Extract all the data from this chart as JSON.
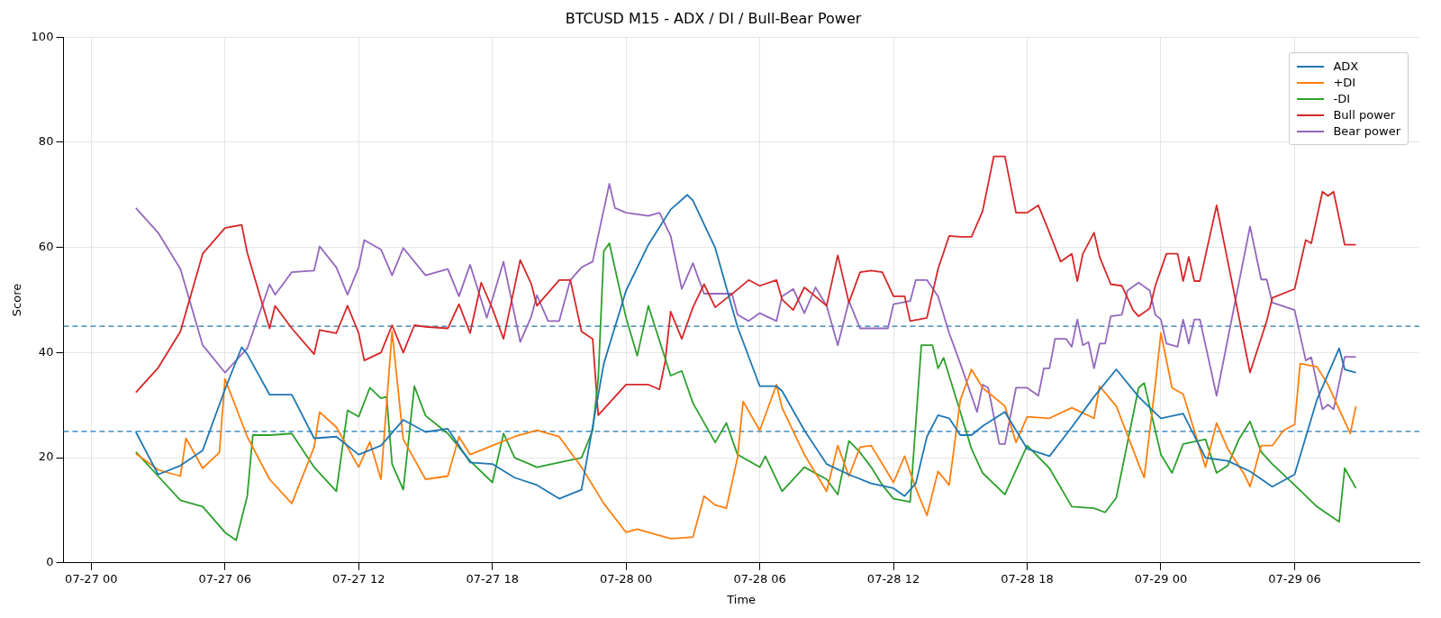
{
  "chart_data": {
    "type": "line",
    "title": "BTCUSD M15 - ADX / DI / Bull-Bear Power",
    "xlabel": "Time",
    "ylabel": "Score",
    "xlim": [
      "--07-26T22:45",
      "--07-29T11:36"
    ],
    "xticks": [
      {
        "value": "--07-27T00:00",
        "label": "07-27 00"
      },
      {
        "value": "--07-27T06:00",
        "label": "07-27 06"
      },
      {
        "value": "--07-27T12:00",
        "label": "07-27 12"
      },
      {
        "value": "--07-27T18:00",
        "label": "07-27 18"
      },
      {
        "value": "--07-28T00:00",
        "label": "07-28 00"
      },
      {
        "value": "--07-28T06:00",
        "label": "07-28 06"
      },
      {
        "value": "--07-28T12:00",
        "label": "07-28 12"
      },
      {
        "value": "--07-28T18:00",
        "label": "07-28 18"
      },
      {
        "value": "--07-29T00:00",
        "label": "07-29 00"
      },
      {
        "value": "--07-29T06:00",
        "label": "07-29 06"
      }
    ],
    "ylim": [
      0,
      100
    ],
    "yticks": [
      0,
      20,
      40,
      60,
      80,
      100
    ],
    "grid": true,
    "legend": "top right",
    "ref_lines": [
      {
        "axis": "y",
        "value": 45,
        "color": "#1f77b4",
        "line_style": "dashed"
      },
      {
        "axis": "y",
        "value": 25,
        "color": "#1f77b4",
        "line_style": "dashed"
      }
    ],
    "series": [
      {
        "name": "ADX",
        "color": "#1f77b4",
        "x": [
          "--07-27T02:00",
          "--07-27T03:00",
          "--07-27T04:00",
          "--07-27T05:00",
          "--07-27T06:00",
          "--07-27T06:45",
          "--07-27T07:00",
          "--07-27T08:00",
          "--07-27T09:00",
          "--07-27T10:00",
          "--07-27T11:00",
          "--07-27T12:00",
          "--07-27T13:00",
          "--07-27T14:00",
          "--07-27T15:00",
          "--07-27T16:00",
          "--07-27T17:00",
          "--07-27T18:00",
          "--07-27T19:00",
          "--07-27T20:00",
          "--07-27T21:00",
          "--07-27T22:00",
          "--07-27T23:00",
          "--07-28T00:00",
          "--07-28T01:00",
          "--07-28T02:00",
          "--07-28T02:45",
          "--07-28T03:00",
          "--07-28T04:00",
          "--07-28T05:00",
          "--07-28T06:00",
          "--07-28T06:45",
          "--07-28T07:00",
          "--07-28T08:00",
          "--07-28T09:00",
          "--07-28T10:00",
          "--07-28T11:00",
          "--07-28T12:00",
          "--07-28T12:30",
          "--07-28T13:00",
          "--07-28T13:30",
          "--07-28T14:00",
          "--07-28T14:30",
          "--07-28T15:00",
          "--07-28T15:30",
          "--07-28T16:00",
          "--07-28T17:00",
          "--07-28T18:00",
          "--07-28T19:00",
          "--07-28T20:00",
          "--07-28T21:00",
          "--07-28T22:00",
          "--07-28T23:00",
          "--07-29T00:00",
          "--07-29T01:00",
          "--07-29T02:00",
          "--07-29T03:00",
          "--07-29T04:00",
          "--07-29T05:00",
          "--07-29T06:00",
          "--07-29T07:00",
          "--07-29T08:00",
          "--07-29T08:15",
          "--07-29T08:45"
        ],
        "values": [
          24.9,
          16.8,
          18.5,
          21.4,
          33,
          41,
          39.7,
          32,
          32,
          23.7,
          24,
          20.6,
          22.3,
          27.2,
          24.9,
          25.5,
          19.1,
          18.8,
          16.2,
          14.8,
          12.2,
          13.9,
          37.9,
          51.8,
          60.5,
          67.2,
          70,
          68.9,
          59.9,
          44.9,
          33.6,
          33.6,
          32.7,
          25.2,
          18.8,
          16.8,
          15.1,
          14.2,
          12.7,
          15.1,
          24,
          28.1,
          27.5,
          24.3,
          24.3,
          26,
          28.7,
          21.7,
          20.3,
          25.8,
          31.6,
          36.8,
          31.6,
          27.5,
          28.4,
          20,
          19.4,
          17.4,
          14.5,
          16.8,
          31,
          40.8,
          36.8,
          36.2
        ]
      },
      {
        "name": "+DI",
        "color": "#ff7f0e",
        "x": [
          "--07-27T02:00",
          "--07-27T03:00",
          "--07-27T04:00",
          "--07-27T04:15",
          "--07-27T05:00",
          "--07-27T05:45",
          "--07-27T06:00",
          "--07-27T07:00",
          "--07-27T08:00",
          "--07-27T09:00",
          "--07-27T10:00",
          "--07-27T10:15",
          "--07-27T11:00",
          "--07-27T12:00",
          "--07-27T12:30",
          "--07-27T13:00",
          "--07-27T13:30",
          "--07-27T14:00",
          "--07-27T15:00",
          "--07-27T16:00",
          "--07-27T16:30",
          "--07-27T17:00",
          "--07-27T18:00",
          "--07-27T19:00",
          "--07-27T20:00",
          "--07-27T21:00",
          "--07-27T22:00",
          "--07-27T23:00",
          "--07-28T00:00",
          "--07-28T00:30",
          "--07-28T01:00",
          "--07-28T02:00",
          "--07-28T03:00",
          "--07-28T03:30",
          "--07-28T04:00",
          "--07-28T04:30",
          "--07-28T05:00",
          "--07-28T05:15",
          "--07-28T06:00",
          "--07-28T06:45",
          "--07-28T07:00",
          "--07-28T08:00",
          "--07-28T09:00",
          "--07-28T09:30",
          "--07-28T10:00",
          "--07-28T10:30",
          "--07-28T11:00",
          "--07-28T11:30",
          "--07-28T12:00",
          "--07-28T12:30",
          "--07-28T13:00",
          "--07-28T13:30",
          "--07-28T14:00",
          "--07-28T14:30",
          "--07-28T15:00",
          "--07-28T15:30",
          "--07-28T16:00",
          "--07-28T17:00",
          "--07-28T17:30",
          "--07-28T18:00",
          "--07-28T19:00",
          "--07-28T20:00",
          "--07-28T21:00",
          "--07-28T21:15",
          "--07-28T22:00",
          "--07-28T23:00",
          "--07-28T23:15",
          "--07-28T23:45",
          "--07-29T00:00",
          "--07-29T00:30",
          "--07-29T01:00",
          "--07-29T02:00",
          "--07-29T02:30",
          "--07-29T03:00",
          "--07-29T03:45",
          "--07-29T04:00",
          "--07-29T04:30",
          "--07-29T05:00",
          "--07-29T05:30",
          "--07-29T06:00",
          "--07-29T06:15",
          "--07-29T07:00",
          "--07-29T07:30",
          "--07-29T08:00",
          "--07-29T08:30",
          "--07-29T08:45"
        ],
        "values": [
          20.8,
          17.7,
          16.5,
          23.7,
          18,
          21,
          35,
          24,
          15.9,
          11.3,
          22,
          28.7,
          25.8,
          18.2,
          23,
          15.9,
          44,
          23.5,
          15.9,
          16.5,
          24,
          20.6,
          22.3,
          24,
          25.2,
          24,
          18.2,
          11.3,
          5.8,
          6.4,
          5.8,
          4.6,
          4.9,
          12.7,
          11,
          10.4,
          20,
          30.7,
          25.2,
          33.9,
          29.5,
          20.6,
          13.6,
          22.3,
          16.5,
          22,
          22.3,
          18.8,
          15.3,
          20.3,
          14.2,
          9,
          17.4,
          14.8,
          31,
          36.8,
          33.3,
          29.8,
          22.9,
          27.8,
          27.5,
          29.5,
          27.5,
          33.6,
          29.8,
          18.8,
          16.2,
          33.9,
          43.7,
          33.3,
          32.1,
          18.2,
          26.6,
          21.7,
          16.8,
          14.5,
          22.3,
          22.3,
          25.2,
          26.3,
          37.9,
          37.3,
          33.9,
          29.2,
          24.6,
          29.8
        ]
      },
      {
        "name": "-DI",
        "color": "#2ca02c",
        "x": [
          "--07-27T02:00",
          "--07-27T03:00",
          "--07-27T04:00",
          "--07-27T05:00",
          "--07-27T06:00",
          "--07-27T06:30",
          "--07-27T07:00",
          "--07-27T07:15",
          "--07-27T08:00",
          "--07-27T09:00",
          "--07-27T10:00",
          "--07-27T11:00",
          "--07-27T11:30",
          "--07-27T12:00",
          "--07-27T12:30",
          "--07-27T13:00",
          "--07-27T13:15",
          "--07-27T13:30",
          "--07-27T14:00",
          "--07-27T14:30",
          "--07-27T15:00",
          "--07-27T16:00",
          "--07-27T17:00",
          "--07-27T18:00",
          "--07-27T18:30",
          "--07-27T19:00",
          "--07-27T20:00",
          "--07-27T21:00",
          "--07-27T22:00",
          "--07-27T22:30",
          "--07-27T22:45",
          "--07-27T23:00",
          "--07-27T23:15",
          "--07-28T00:00",
          "--07-28T00:30",
          "--07-28T01:00",
          "--07-28T02:00",
          "--07-28T02:30",
          "--07-28T03:00",
          "--07-28T04:00",
          "--07-28T04:30",
          "--07-28T05:00",
          "--07-28T06:00",
          "--07-28T06:15",
          "--07-28T07:00",
          "--07-28T08:00",
          "--07-28T09:00",
          "--07-28T09:30",
          "--07-28T10:00",
          "--07-28T10:30",
          "--07-28T11:00",
          "--07-28T11:30",
          "--07-28T12:00",
          "--07-28T12:45",
          "--07-28T13:15",
          "--07-28T13:45",
          "--07-28T14:00",
          "--07-28T14:15",
          "--07-28T15:00",
          "--07-28T15:30",
          "--07-28T16:00",
          "--07-28T17:00",
          "--07-28T18:00",
          "--07-28T19:00",
          "--07-28T20:00",
          "--07-28T21:00",
          "--07-28T21:30",
          "--07-28T22:00",
          "--07-28T23:00",
          "--07-28T23:15",
          "--07-29T00:00",
          "--07-29T00:30",
          "--07-29T01:00",
          "--07-29T02:00",
          "--07-29T02:30",
          "--07-29T03:00",
          "--07-29T03:30",
          "--07-29T04:00",
          "--07-29T04:30",
          "--07-29T05:00",
          "--07-29T06:00",
          "--07-29T07:00",
          "--07-29T08:00",
          "--07-29T08:15",
          "--07-29T08:45"
        ],
        "values": [
          21.1,
          16.5,
          11.9,
          10.7,
          5.8,
          4.3,
          12.7,
          24.3,
          24.3,
          24.6,
          18.2,
          13.6,
          29,
          27.8,
          33.3,
          31.3,
          31.6,
          18.8,
          13.9,
          33.6,
          28,
          24.6,
          19.4,
          15.3,
          24.6,
          20,
          18.2,
          19.1,
          20,
          25.2,
          35,
          59.3,
          60.8,
          46.6,
          39.4,
          48.9,
          35.6,
          36.5,
          30.4,
          22.9,
          26.6,
          20.6,
          18.2,
          20.3,
          13.6,
          18.2,
          15.9,
          13,
          23.2,
          21,
          18.2,
          14.8,
          12.2,
          11.6,
          41.4,
          41.4,
          37,
          39,
          28.7,
          21.7,
          17.1,
          13,
          22.3,
          18,
          10.7,
          10.4,
          9.6,
          12.4,
          33.3,
          34.2,
          20.6,
          17.1,
          22.6,
          23.5,
          17.1,
          18.5,
          23.5,
          26.9,
          21.1,
          18.8,
          14.8,
          10.7,
          7.8,
          18,
          14.2
        ]
      },
      {
        "name": "Bull power",
        "color": "#d62728",
        "x": [
          "--07-27T02:00",
          "--07-27T03:00",
          "--07-27T04:00",
          "--07-27T05:00",
          "--07-27T06:00",
          "--07-27T06:45",
          "--07-27T07:00",
          "--07-27T08:00",
          "--07-27T08:15",
          "--07-27T09:00",
          "--07-27T10:00",
          "--07-27T10:15",
          "--07-27T11:00",
          "--07-27T11:30",
          "--07-27T12:00",
          "--07-27T12:15",
          "--07-27T13:00",
          "--07-27T13:30",
          "--07-27T14:00",
          "--07-27T14:30",
          "--07-27T15:00",
          "--07-27T16:00",
          "--07-27T16:30",
          "--07-27T17:00",
          "--07-27T17:30",
          "--07-27T18:00",
          "--07-27T18:30",
          "--07-27T19:15",
          "--07-27T19:45",
          "--07-27T20:00",
          "--07-27T21:00",
          "--07-27T21:30",
          "--07-27T22:00",
          "--07-27T22:30",
          "--07-27T22:45",
          "--07-28T00:00",
          "--07-28T01:00",
          "--07-28T01:30",
          "--07-28T01:45",
          "--07-28T02:00",
          "--07-28T02:30",
          "--07-28T03:00",
          "--07-28T03:30",
          "--07-28T04:00",
          "--07-28T05:00",
          "--07-28T05:30",
          "--07-28T06:00",
          "--07-28T06:45",
          "--07-28T07:00",
          "--07-28T07:30",
          "--07-28T08:00",
          "--07-28T09:00",
          "--07-28T09:30",
          "--07-28T10:00",
          "--07-28T10:30",
          "--07-28T11:00",
          "--07-28T11:30",
          "--07-28T12:00",
          "--07-28T12:30",
          "--07-28T12:45",
          "--07-28T13:30",
          "--07-28T14:00",
          "--07-28T14:30",
          "--07-28T15:00",
          "--07-28T15:30",
          "--07-28T16:00",
          "--07-28T16:30",
          "--07-28T17:00",
          "--07-28T17:30",
          "--07-28T18:00",
          "--07-28T18:30",
          "--07-28T19:00",
          "--07-28T19:30",
          "--07-28T20:00",
          "--07-28T20:15",
          "--07-28T20:30",
          "--07-28T21:00",
          "--07-28T21:15",
          "--07-28T21:45",
          "--07-28T22:15",
          "--07-28T22:45",
          "--07-28T23:00",
          "--07-28T23:30",
          "--07-28T23:45",
          "--07-29T00:15",
          "--07-29T00:45",
          "--07-29T01:00",
          "--07-29T01:15",
          "--07-29T01:30",
          "--07-29T01:45",
          "--07-29T02:30",
          "--07-29T04:00",
          "--07-29T04:45",
          "--07-29T05:00",
          "--07-29T06:00",
          "--07-29T06:30",
          "--07-29T06:45",
          "--07-29T07:15",
          "--07-29T07:30",
          "--07-29T07:45",
          "--07-29T08:15",
          "--07-29T08:45"
        ],
        "values": [
          32.4,
          37.1,
          44,
          58.8,
          63.7,
          64.3,
          59,
          44.6,
          48.9,
          44.6,
          39.7,
          44.3,
          43.7,
          48.9,
          43.7,
          38.5,
          40,
          45.2,
          40,
          45.2,
          44.9,
          44.6,
          49.2,
          43.7,
          53.3,
          48.4,
          42.6,
          57.6,
          53,
          48.9,
          53.8,
          53.8,
          44,
          42.6,
          28.1,
          33.9,
          33.9,
          33,
          38.2,
          47.8,
          42.6,
          48.6,
          53,
          48.6,
          52,
          53.8,
          52.7,
          53.8,
          50.1,
          48.1,
          52.4,
          48.9,
          58.5,
          49.5,
          55.3,
          55.6,
          55.3,
          50.7,
          50.7,
          46,
          46.6,
          55.9,
          62.2,
          62,
          62,
          66.9,
          77.3,
          77.3,
          66.6,
          66.6,
          68,
          62.8,
          57.3,
          58.8,
          53.6,
          58.8,
          62.8,
          58.2,
          53,
          52.7,
          48.1,
          46.9,
          48.4,
          52.7,
          58.8,
          58.8,
          53.6,
          58.2,
          53.6,
          53.6,
          68,
          36.2,
          46,
          50.4,
          52.1,
          61.4,
          60.8,
          70.6,
          69.8,
          70.6,
          60.5,
          60.5
        ]
      },
      {
        "name": "Bear power",
        "color": "#9467bd",
        "x": [
          "--07-27T02:00",
          "--07-27T03:00",
          "--07-27T04:00",
          "--07-27T05:00",
          "--07-27T06:00",
          "--07-27T07:00",
          "--07-27T08:00",
          "--07-27T08:15",
          "--07-27T09:00",
          "--07-27T10:00",
          "--07-27T10:15",
          "--07-27T11:00",
          "--07-27T11:30",
          "--07-27T12:00",
          "--07-27T12:15",
          "--07-27T13:00",
          "--07-27T13:30",
          "--07-27T14:00",
          "--07-27T15:00",
          "--07-27T16:00",
          "--07-27T16:30",
          "--07-27T17:00",
          "--07-27T17:45",
          "--07-27T18:30",
          "--07-27T19:15",
          "--07-27T19:45",
          "--07-27T20:00",
          "--07-27T20:30",
          "--07-27T21:00",
          "--07-27T21:30",
          "--07-27T22:00",
          "--07-27T22:30",
          "--07-27T23:00",
          "--07-27T23:15",
          "--07-27T23:30",
          "--07-28T00:00",
          "--07-28T01:00",
          "--07-28T01:30",
          "--07-28T02:00",
          "--07-28T02:30",
          "--07-28T03:00",
          "--07-28T03:30",
          "--07-28T04:00",
          "--07-28T04:45",
          "--07-28T05:00",
          "--07-28T05:30",
          "--07-28T06:00",
          "--07-28T06:45",
          "--07-28T07:00",
          "--07-28T07:30",
          "--07-28T08:00",
          "--07-28T08:30",
          "--07-28T09:00",
          "--07-28T09:30",
          "--07-28T10:00",
          "--07-28T10:30",
          "--07-28T11:00",
          "--07-28T11:45",
          "--07-28T12:00",
          "--07-28T12:45",
          "--07-28T13:00",
          "--07-28T13:30",
          "--07-28T14:00",
          "--07-28T14:30",
          "--07-28T15:00",
          "--07-28T15:45",
          "--07-28T16:00",
          "--07-28T16:15",
          "--07-28T16:45",
          "--07-28T17:00",
          "--07-28T17:30",
          "--07-28T18:00",
          "--07-28T18:30",
          "--07-28T18:45",
          "--07-28T19:00",
          "--07-28T19:15",
          "--07-28T19:45",
          "--07-28T20:00",
          "--07-28T20:15",
          "--07-28T20:30",
          "--07-28T20:45",
          "--07-28T21:00",
          "--07-28T21:15",
          "--07-28T21:30",
          "--07-28T21:45",
          "--07-28T22:15",
          "--07-28T22:30",
          "--07-28T23:00",
          "--07-28T23:30",
          "--07-28T23:45",
          "--07-29T00:00",
          "--07-29T00:15",
          "--07-29T00:45",
          "--07-29T01:00",
          "--07-29T01:15",
          "--07-29T01:30",
          "--07-29T01:45",
          "--07-29T02:30",
          "--07-29T04:00",
          "--07-29T04:30",
          "--07-29T04:45",
          "--07-29T05:00",
          "--07-29T06:00",
          "--07-29T06:30",
          "--07-29T06:45",
          "--07-29T07:15",
          "--07-29T07:30",
          "--07-29T07:45",
          "--07-29T08:15",
          "--07-29T08:45"
        ],
        "values": [
          67.5,
          62.8,
          55.9,
          41.4,
          36.2,
          40.8,
          53,
          51,
          55.3,
          55.6,
          60.2,
          56.2,
          51,
          56.2,
          61.4,
          59.6,
          54.7,
          59.9,
          54.7,
          55.9,
          50.7,
          56.7,
          46.6,
          57.3,
          42,
          46.9,
          50.9,
          46,
          46,
          53.8,
          56.2,
          57.3,
          67.2,
          72.1,
          67.5,
          66.6,
          66,
          66.6,
          62.2,
          52.1,
          57,
          51.2,
          51.2,
          51.2,
          47.2,
          46,
          47.5,
          46,
          50.7,
          52.1,
          47.5,
          52.4,
          48.9,
          41.4,
          49.8,
          44.6,
          44.6,
          44.6,
          49.2,
          49.8,
          53.8,
          53.8,
          50.7,
          43.7,
          37.9,
          28.7,
          33.9,
          33.3,
          22.6,
          22.6,
          33.3,
          33.3,
          31.8,
          37,
          37,
          42.6,
          42.6,
          41.1,
          46.3,
          41.4,
          42,
          37,
          41.7,
          41.7,
          46.9,
          47.2,
          51.8,
          53.3,
          51.8,
          47.2,
          46.3,
          41.7,
          41.1,
          46.3,
          41.7,
          46.3,
          46.3,
          31.8,
          64,
          53.9,
          53.9,
          49.5,
          48.1,
          38.5,
          39.1,
          29.2,
          30.1,
          29.2,
          39.2,
          39.2
        ]
      }
    ]
  }
}
